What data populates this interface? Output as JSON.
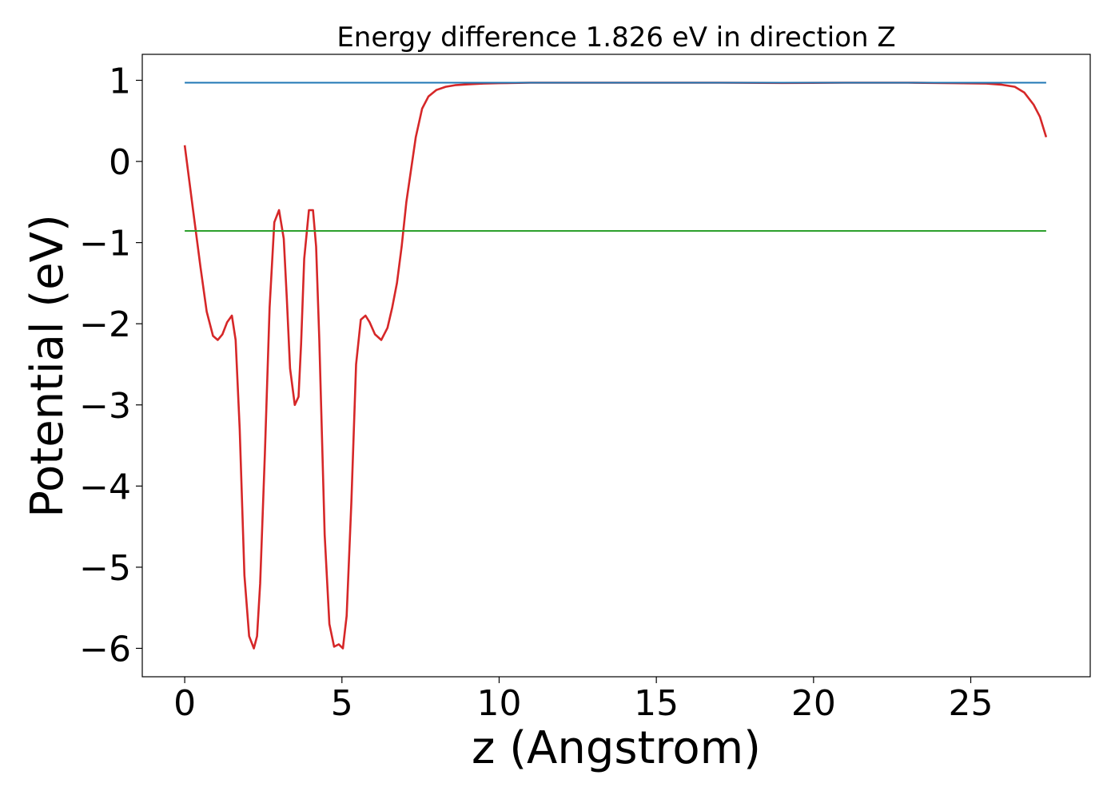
{
  "chart_data": {
    "type": "line",
    "title": "Energy difference 1.826 eV in direction Z",
    "xlabel": "z (Angstrom)",
    "ylabel": "Potential (eV)",
    "xlim": [
      -1.35,
      28.8
    ],
    "ylim": [
      -6.35,
      1.32
    ],
    "xticks": [
      0,
      5,
      10,
      15,
      20,
      25
    ],
    "xtick_labels": [
      "0",
      "5",
      "10",
      "15",
      "20",
      "25"
    ],
    "yticks": [
      1,
      0,
      -1,
      -2,
      -3,
      -4,
      -5,
      -6
    ],
    "ytick_labels": [
      "1",
      "0",
      "−1",
      "−2",
      "−3",
      "−4",
      "−5",
      "−6"
    ],
    "grid": false,
    "legend": "none",
    "series": [
      {
        "role": "potential",
        "color": "#d62728",
        "x": [
          0.0,
          0.25,
          0.5,
          0.7,
          0.9,
          1.05,
          1.2,
          1.35,
          1.5,
          1.62,
          1.75,
          1.9,
          2.05,
          2.2,
          2.3,
          2.4,
          2.55,
          2.7,
          2.85,
          3.0,
          3.15,
          3.25,
          3.35,
          3.5,
          3.62,
          3.7,
          3.8,
          3.95,
          4.08,
          4.18,
          4.28,
          4.45,
          4.6,
          4.75,
          4.9,
          5.03,
          5.15,
          5.3,
          5.45,
          5.6,
          5.75,
          5.88,
          6.05,
          6.25,
          6.45,
          6.6,
          6.75,
          6.9,
          7.05,
          7.2,
          7.35,
          7.55,
          7.75,
          8.0,
          8.3,
          8.6,
          9.0,
          9.5,
          10.0,
          11.0,
          13.0,
          15.0,
          17.0,
          19.0,
          21.0,
          23.0,
          24.5,
          25.5,
          26.0,
          26.4,
          26.7,
          27.0,
          27.2,
          27.4
        ],
        "y": [
          0.2,
          -0.55,
          -1.3,
          -1.85,
          -2.15,
          -2.2,
          -2.13,
          -1.98,
          -1.9,
          -2.2,
          -3.3,
          -5.1,
          -5.85,
          -6.0,
          -5.85,
          -5.2,
          -3.6,
          -1.8,
          -0.75,
          -0.6,
          -0.95,
          -1.7,
          -2.55,
          -3.0,
          -2.9,
          -2.25,
          -1.2,
          -0.6,
          -0.6,
          -1.05,
          -2.2,
          -4.6,
          -5.7,
          -5.98,
          -5.95,
          -6.0,
          -5.6,
          -4.2,
          -2.5,
          -1.95,
          -1.9,
          -1.98,
          -2.13,
          -2.2,
          -2.05,
          -1.8,
          -1.5,
          -1.05,
          -0.5,
          -0.1,
          0.3,
          0.65,
          0.8,
          0.88,
          0.92,
          0.94,
          0.95,
          0.96,
          0.965,
          0.97,
          0.97,
          0.97,
          0.97,
          0.968,
          0.97,
          0.97,
          0.965,
          0.96,
          0.945,
          0.92,
          0.85,
          0.7,
          0.55,
          0.3
        ]
      },
      {
        "role": "vacuum level",
        "color": "#1f77b4",
        "x": [
          0.0,
          27.4
        ],
        "y": [
          0.97,
          0.97
        ]
      },
      {
        "role": "average",
        "color": "#2ca02c",
        "x": [
          0.0,
          27.4
        ],
        "y": [
          -0.856,
          -0.856
        ]
      }
    ]
  }
}
